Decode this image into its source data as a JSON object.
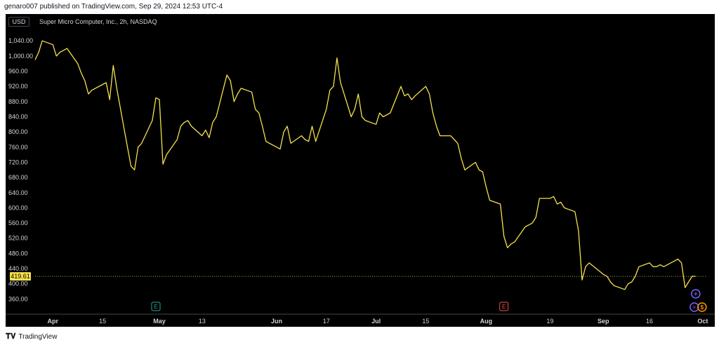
{
  "publish_line": "genaro007 published on TradingView.com, Sep 29, 2024 12:53 UTC-4",
  "chart": {
    "currency": "USD",
    "symbol_title": "Super Micro Computer, Inc., 2h, NASDAQ",
    "current_price_label": "419.61",
    "colors": {
      "background": "#000000",
      "line": "#f5e14a",
      "price_marker": "#f5e14a",
      "earnings_marker_1": "#26a69a",
      "earnings_marker_2": "#ef5350",
      "event_plus": "#7b61ff",
      "event_dividend": "#ff9800"
    },
    "earnings_label": "E",
    "event_markers": {
      "plus": "+",
      "dividend": "$",
      "split": "×"
    },
    "icons": {
      "event_plus": "plus-circle-icon",
      "event_dividend": "dollar-circle-icon",
      "tradingview_logo": "tradingview-logo-icon"
    }
  },
  "chart_data": {
    "type": "line",
    "y_ticks": [
      {
        "value": 360,
        "label": "360.00"
      },
      {
        "value": 400,
        "label": "400.00"
      },
      {
        "value": 440,
        "label": "440.00"
      },
      {
        "value": 480,
        "label": "480.00"
      },
      {
        "value": 520,
        "label": "520.00"
      },
      {
        "value": 560,
        "label": "560.00"
      },
      {
        "value": 600,
        "label": "600.00"
      },
      {
        "value": 640,
        "label": "640.00"
      },
      {
        "value": 680,
        "label": "680.00"
      },
      {
        "value": 720,
        "label": "720.00"
      },
      {
        "value": 760,
        "label": "760.00"
      },
      {
        "value": 800,
        "label": "800.00"
      },
      {
        "value": 840,
        "label": "840.00"
      },
      {
        "value": 880,
        "label": "880.00"
      },
      {
        "value": 920,
        "label": "920.00"
      },
      {
        "value": 960,
        "label": "960.00"
      },
      {
        "value": 1000,
        "label": "1,000.00"
      },
      {
        "value": 1040,
        "label": "1,040.00"
      }
    ],
    "ylim": [
      320,
      1070
    ],
    "x_ticks": [
      {
        "date": "2024-04-01",
        "label": "Apr",
        "strong": true
      },
      {
        "date": "2024-04-15",
        "label": "15",
        "strong": false
      },
      {
        "date": "2024-05-01",
        "label": "May",
        "strong": true
      },
      {
        "date": "2024-05-13",
        "label": "13",
        "strong": false
      },
      {
        "date": "2024-06-03",
        "label": "Jun",
        "strong": true
      },
      {
        "date": "2024-06-17",
        "label": "17",
        "strong": false
      },
      {
        "date": "2024-07-01",
        "label": "Jul",
        "strong": true
      },
      {
        "date": "2024-07-15",
        "label": "15",
        "strong": false
      },
      {
        "date": "2024-08-01",
        "label": "Aug",
        "strong": true
      },
      {
        "date": "2024-08-19",
        "label": "19",
        "strong": false
      },
      {
        "date": "2024-09-03",
        "label": "Sep",
        "strong": true
      },
      {
        "date": "2024-09-16",
        "label": "16",
        "strong": false
      },
      {
        "date": "2024-10-01",
        "label": "Oct",
        "strong": true
      }
    ],
    "xlim": [
      "2024-03-27",
      "2024-10-02"
    ],
    "current_price": 419.61,
    "earnings_dates": [
      "2024-04-30",
      "2024-08-06"
    ],
    "series": [
      {
        "points": [
          [
            "2024-03-27",
            990
          ],
          [
            "2024-03-28",
            1010
          ],
          [
            "2024-03-29",
            1040
          ],
          [
            "2024-04-01",
            1030
          ],
          [
            "2024-04-02",
            1000
          ],
          [
            "2024-04-03",
            1010
          ],
          [
            "2024-04-04",
            1015
          ],
          [
            "2024-04-05",
            1020
          ],
          [
            "2024-04-08",
            980
          ],
          [
            "2024-04-09",
            955
          ],
          [
            "2024-04-10",
            935
          ],
          [
            "2024-04-11",
            900
          ],
          [
            "2024-04-12",
            910
          ],
          [
            "2024-04-15",
            925
          ],
          [
            "2024-04-16",
            930
          ],
          [
            "2024-04-17",
            885
          ],
          [
            "2024-04-18",
            975
          ],
          [
            "2024-04-19",
            915
          ],
          [
            "2024-04-22",
            760
          ],
          [
            "2024-04-23",
            710
          ],
          [
            "2024-04-24",
            700
          ],
          [
            "2024-04-25",
            760
          ],
          [
            "2024-04-26",
            770
          ],
          [
            "2024-04-29",
            830
          ],
          [
            "2024-04-30",
            890
          ],
          [
            "2024-05-01",
            885
          ],
          [
            "2024-05-02",
            715
          ],
          [
            "2024-05-03",
            740
          ],
          [
            "2024-05-06",
            780
          ],
          [
            "2024-05-07",
            815
          ],
          [
            "2024-05-08",
            825
          ],
          [
            "2024-05-09",
            830
          ],
          [
            "2024-05-10",
            815
          ],
          [
            "2024-05-13",
            790
          ],
          [
            "2024-05-14",
            805
          ],
          [
            "2024-05-15",
            785
          ],
          [
            "2024-05-16",
            825
          ],
          [
            "2024-05-17",
            840
          ],
          [
            "2024-05-20",
            950
          ],
          [
            "2024-05-21",
            935
          ],
          [
            "2024-05-22",
            880
          ],
          [
            "2024-05-23",
            900
          ],
          [
            "2024-05-24",
            915
          ],
          [
            "2024-05-27",
            905
          ],
          [
            "2024-05-28",
            860
          ],
          [
            "2024-05-29",
            850
          ],
          [
            "2024-05-30",
            815
          ],
          [
            "2024-05-31",
            775
          ],
          [
            "2024-06-03",
            760
          ],
          [
            "2024-06-04",
            755
          ],
          [
            "2024-06-05",
            800
          ],
          [
            "2024-06-06",
            815
          ],
          [
            "2024-06-07",
            770
          ],
          [
            "2024-06-10",
            790
          ],
          [
            "2024-06-11",
            780
          ],
          [
            "2024-06-12",
            775
          ],
          [
            "2024-06-13",
            815
          ],
          [
            "2024-06-14",
            775
          ],
          [
            "2024-06-17",
            860
          ],
          [
            "2024-06-18",
            910
          ],
          [
            "2024-06-19",
            920
          ],
          [
            "2024-06-20",
            995
          ],
          [
            "2024-06-21",
            930
          ],
          [
            "2024-06-24",
            840
          ],
          [
            "2024-06-25",
            860
          ],
          [
            "2024-06-26",
            900
          ],
          [
            "2024-06-27",
            840
          ],
          [
            "2024-06-28",
            830
          ],
          [
            "2024-07-01",
            820
          ],
          [
            "2024-07-02",
            850
          ],
          [
            "2024-07-03",
            840
          ],
          [
            "2024-07-05",
            850
          ],
          [
            "2024-07-08",
            920
          ],
          [
            "2024-07-09",
            895
          ],
          [
            "2024-07-10",
            900
          ],
          [
            "2024-07-11",
            885
          ],
          [
            "2024-07-12",
            895
          ],
          [
            "2024-07-15",
            920
          ],
          [
            "2024-07-16",
            900
          ],
          [
            "2024-07-17",
            850
          ],
          [
            "2024-07-18",
            815
          ],
          [
            "2024-07-19",
            790
          ],
          [
            "2024-07-22",
            790
          ],
          [
            "2024-07-23",
            780
          ],
          [
            "2024-07-24",
            770
          ],
          [
            "2024-07-25",
            730
          ],
          [
            "2024-07-26",
            700
          ],
          [
            "2024-07-29",
            720
          ],
          [
            "2024-07-30",
            700
          ],
          [
            "2024-07-31",
            695
          ],
          [
            "2024-08-01",
            655
          ],
          [
            "2024-08-02",
            620
          ],
          [
            "2024-08-05",
            610
          ],
          [
            "2024-08-06",
            525
          ],
          [
            "2024-08-07",
            495
          ],
          [
            "2024-08-08",
            505
          ],
          [
            "2024-08-09",
            510
          ],
          [
            "2024-08-12",
            550
          ],
          [
            "2024-08-13",
            555
          ],
          [
            "2024-08-14",
            560
          ],
          [
            "2024-08-15",
            575
          ],
          [
            "2024-08-16",
            625
          ],
          [
            "2024-08-19",
            625
          ],
          [
            "2024-08-20",
            630
          ],
          [
            "2024-08-21",
            610
          ],
          [
            "2024-08-22",
            615
          ],
          [
            "2024-08-23",
            600
          ],
          [
            "2024-08-26",
            590
          ],
          [
            "2024-08-27",
            540
          ],
          [
            "2024-08-28",
            410
          ],
          [
            "2024-08-29",
            445
          ],
          [
            "2024-08-30",
            455
          ],
          [
            "2024-09-03",
            425
          ],
          [
            "2024-09-04",
            420
          ],
          [
            "2024-09-05",
            405
          ],
          [
            "2024-09-06",
            395
          ],
          [
            "2024-09-09",
            385
          ],
          [
            "2024-09-10",
            400
          ],
          [
            "2024-09-11",
            405
          ],
          [
            "2024-09-12",
            420
          ],
          [
            "2024-09-13",
            445
          ],
          [
            "2024-09-16",
            455
          ],
          [
            "2024-09-17",
            445
          ],
          [
            "2024-09-18",
            445
          ],
          [
            "2024-09-19",
            450
          ],
          [
            "2024-09-20",
            445
          ],
          [
            "2024-09-23",
            460
          ],
          [
            "2024-09-24",
            465
          ],
          [
            "2024-09-25",
            455
          ],
          [
            "2024-09-26",
            390
          ],
          [
            "2024-09-27",
            405
          ],
          [
            "2024-09-28",
            420
          ],
          [
            "2024-09-29",
            419.61
          ]
        ]
      }
    ]
  },
  "footer": {
    "brand": "TradingView"
  }
}
